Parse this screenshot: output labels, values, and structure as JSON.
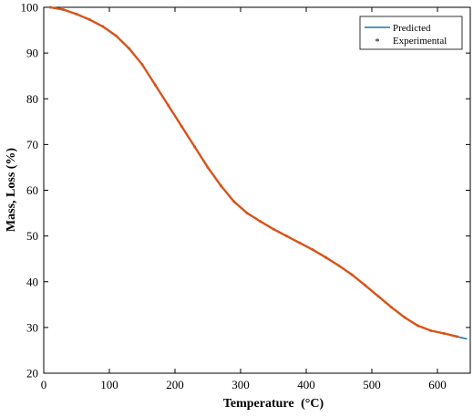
{
  "chart_data": {
    "type": "line",
    "title": "",
    "xlabel": "Temperature",
    "xlabel_unit": "(°C)",
    "ylabel": "Mass, Loss (%)",
    "xlim": [
      0,
      650
    ],
    "ylim": [
      20,
      100
    ],
    "xticks": [
      "0",
      "100",
      "200",
      "300",
      "400",
      "500",
      "600"
    ],
    "yticks": [
      "20",
      "30",
      "40",
      "50",
      "60",
      "70",
      "80",
      "90",
      "100"
    ],
    "grid": false,
    "legend_position": "top-right",
    "series": [
      {
        "name": "Predicted",
        "style": "line",
        "color": "#1f77b4",
        "x": [
          10,
          30,
          50,
          70,
          90,
          110,
          130,
          150,
          170,
          190,
          210,
          230,
          250,
          270,
          290,
          310,
          330,
          350,
          370,
          390,
          410,
          430,
          450,
          470,
          490,
          510,
          530,
          550,
          570,
          590,
          610,
          630,
          645
        ],
        "y": [
          100,
          99.5,
          98.5,
          97.3,
          95.8,
          93.8,
          91.0,
          87.5,
          83.0,
          78.5,
          74.0,
          69.5,
          65.0,
          61.0,
          57.5,
          55.0,
          53.2,
          51.5,
          50.0,
          48.5,
          47.0,
          45.3,
          43.5,
          41.5,
          39.2,
          36.8,
          34.4,
          32.2,
          30.4,
          29.3,
          28.7,
          28.0,
          27.5
        ]
      },
      {
        "name": "Experimental",
        "style": "markers",
        "color": "#d95319",
        "x": [
          10,
          30,
          50,
          70,
          90,
          110,
          130,
          150,
          170,
          190,
          210,
          230,
          250,
          270,
          290,
          310,
          330,
          350,
          370,
          390,
          410,
          430,
          450,
          470,
          490,
          510,
          530,
          550,
          570,
          590,
          610,
          630
        ],
        "y": [
          100,
          99.5,
          98.5,
          97.3,
          95.8,
          93.8,
          91.0,
          87.5,
          83.0,
          78.5,
          74.0,
          69.5,
          65.0,
          61.0,
          57.5,
          55.0,
          53.2,
          51.5,
          50.0,
          48.5,
          47.0,
          45.3,
          43.5,
          41.5,
          39.2,
          36.8,
          34.4,
          32.2,
          30.4,
          29.3,
          28.7,
          28.0
        ]
      }
    ]
  }
}
